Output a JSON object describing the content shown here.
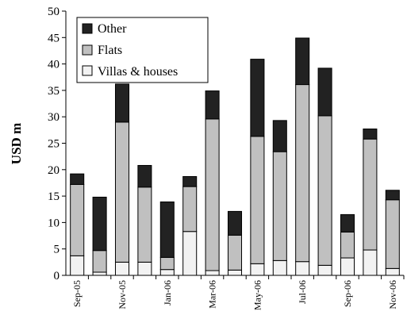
{
  "chart_data": {
    "type": "bar",
    "stacked": true,
    "ylabel": "USD m",
    "xlabel": "",
    "ylim": [
      0,
      50
    ],
    "yticks": [
      0,
      5,
      10,
      15,
      20,
      25,
      30,
      35,
      40,
      45,
      50
    ],
    "x_tick_labels_shown": [
      "Sep-05",
      "Nov-05",
      "Jan-06",
      "Mar-06",
      "May-06",
      "Jul-06",
      "Sep-06",
      "Nov-06"
    ],
    "categories": [
      "Sep-05",
      "Oct-05",
      "Nov-05",
      "Dec-05",
      "Jan-06",
      "Feb-06",
      "Mar-06",
      "Apr-06",
      "May-06",
      "Jun-06",
      "Jul-06",
      "Aug-06",
      "Sep-06",
      "Oct-06",
      "Nov-06"
    ],
    "series": [
      {
        "name": "Villas & houses",
        "color": "#f2f2f2",
        "values": [
          3.7,
          0.6,
          2.5,
          2.5,
          1.1,
          8.3,
          0.9,
          1.0,
          2.2,
          2.8,
          2.6,
          1.9,
          3.3,
          4.8,
          1.3
        ]
      },
      {
        "name": "Flats",
        "color": "#c0c0c0",
        "values": [
          13.5,
          4.1,
          26.5,
          14.2,
          2.3,
          8.5,
          28.7,
          6.6,
          24.1,
          20.6,
          33.5,
          28.3,
          4.9,
          21.0,
          13.0
        ]
      },
      {
        "name": "Other",
        "color": "#222222",
        "values": [
          2.0,
          10.1,
          7.2,
          4.1,
          10.5,
          1.9,
          5.3,
          4.5,
          14.6,
          5.9,
          8.8,
          9.0,
          3.3,
          1.9,
          1.8
        ]
      }
    ],
    "legend": {
      "position": "top-left",
      "order": [
        "Other",
        "Flats",
        "Villas & houses"
      ]
    },
    "grid": false
  }
}
